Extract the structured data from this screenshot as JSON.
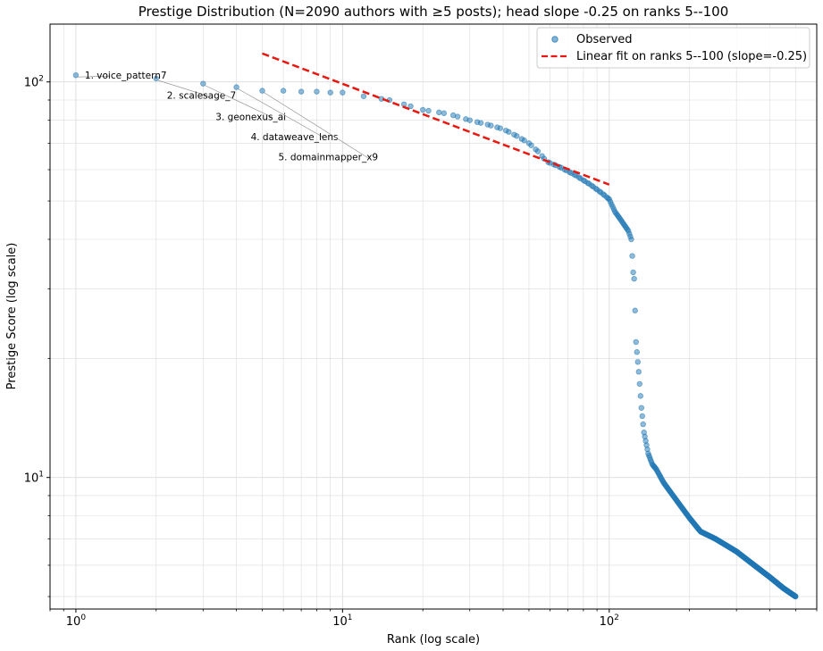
{
  "chart_data": {
    "type": "scatter",
    "title": "Prestige Distribution (N=2090 authors with ≥5 posts); head slope -0.25 on ranks 5--100",
    "xlabel": "Rank (log scale)",
    "ylabel": "Prestige Score (log scale)",
    "x_scale": "log",
    "y_scale": "log",
    "xlim": [
      0.8,
      600
    ],
    "ylim": [
      4.65,
      140
    ],
    "x_ticks": [
      {
        "value": 1,
        "base": "10",
        "exp": "0"
      },
      {
        "value": 10,
        "base": "10",
        "exp": "1"
      },
      {
        "value": 100,
        "base": "10",
        "exp": "2"
      }
    ],
    "y_ticks": [
      {
        "value": 10,
        "base": "10",
        "exp": "1"
      },
      {
        "value": 100,
        "base": "10",
        "exp": "2"
      }
    ],
    "grid": true,
    "legend_position": "top-right",
    "series": [
      {
        "name": "Observed",
        "kind": "scatter",
        "color": "#1f77b4",
        "anchors": [
          [
            1,
            104
          ],
          [
            2,
            102
          ],
          [
            3,
            99
          ],
          [
            4,
            97
          ],
          [
            5,
            95
          ],
          [
            6,
            95
          ],
          [
            7,
            94.5
          ],
          [
            8,
            94.5
          ],
          [
            9,
            94
          ],
          [
            10,
            94
          ],
          [
            12,
            92
          ],
          [
            15,
            90
          ],
          [
            20,
            85
          ],
          [
            25,
            83
          ],
          [
            30,
            80
          ],
          [
            35,
            78
          ],
          [
            40,
            76
          ],
          [
            45,
            73
          ],
          [
            50,
            70
          ],
          [
            55,
            66
          ],
          [
            58,
            63
          ],
          [
            65,
            61
          ],
          [
            75,
            58
          ],
          [
            85,
            55
          ],
          [
            95,
            52
          ],
          [
            100,
            50.5
          ],
          [
            105,
            47
          ],
          [
            110,
            45
          ],
          [
            118,
            42
          ],
          [
            121,
            40
          ],
          [
            123,
            33
          ],
          [
            124,
            31.8
          ],
          [
            126,
            22
          ],
          [
            129,
            18.5
          ],
          [
            132,
            15
          ],
          [
            135,
            13
          ],
          [
            140,
            11.5
          ],
          [
            145,
            10.8
          ],
          [
            150,
            10.5
          ],
          [
            160,
            9.7
          ],
          [
            180,
            8.7
          ],
          [
            200,
            7.9
          ],
          [
            220,
            7.3
          ],
          [
            250,
            7.0
          ],
          [
            300,
            6.5
          ],
          [
            350,
            6.0
          ],
          [
            400,
            5.6
          ],
          [
            450,
            5.25
          ],
          [
            500,
            5.0
          ]
        ]
      },
      {
        "name": "Linear fit on ranks 5--100 (slope=-0.25)",
        "kind": "line",
        "color": "#e8170f",
        "dash": true,
        "x": [
          5,
          100
        ],
        "y": [
          118,
          55
        ],
        "slope": -0.25
      }
    ],
    "annotations": [
      {
        "text": "1. voice_pattern7",
        "x": 1,
        "y": 104
      },
      {
        "text": "2. scalesage_7",
        "x": 2,
        "y": 102
      },
      {
        "text": "3. geonexus_ai",
        "x": 3,
        "y": 99
      },
      {
        "text": "4. dataweave_lens",
        "x": 4,
        "y": 97
      },
      {
        "text": "5. domainmapper_x9",
        "x": 5,
        "y": 95
      }
    ]
  }
}
